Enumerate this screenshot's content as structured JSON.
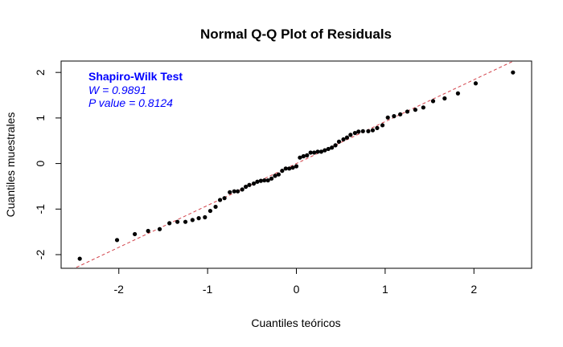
{
  "chart_data": {
    "type": "scatter",
    "title": "Normal Q-Q Plot of Residuals",
    "xlabel": "Cuantiles teóricos",
    "ylabel": "Cuantiles muestrales",
    "xlim": [
      -2.65,
      2.65
    ],
    "ylim": [
      -2.3,
      2.25
    ],
    "xticks": [
      -2,
      -1,
      0,
      1,
      2
    ],
    "yticks": [
      -2,
      -1,
      0,
      1,
      2
    ],
    "xtick_labels": [
      "-2",
      "-1",
      "0",
      "1",
      "2"
    ],
    "ytick_labels": [
      "-2",
      "-1",
      "0",
      "1",
      "2"
    ],
    "grid": false,
    "reference_line": {
      "intercept": 0,
      "slope": 0.92,
      "style": "dashed",
      "color": "#d2424a"
    },
    "point_color": "#000000",
    "annotation": {
      "title": "Shapiro-Wilk Test",
      "lines": [
        "W = 0.9891",
        "P value = 0.8124"
      ],
      "color": "#0000ff",
      "position": "top-left"
    },
    "points": [
      [
        -2.44,
        -2.09
      ],
      [
        -2.02,
        -1.68
      ],
      [
        -1.82,
        -1.55
      ],
      [
        -1.67,
        -1.48
      ],
      [
        -1.54,
        -1.44
      ],
      [
        -1.43,
        -1.31
      ],
      [
        -1.34,
        -1.28
      ],
      [
        -1.25,
        -1.28
      ],
      [
        -1.17,
        -1.24
      ],
      [
        -1.1,
        -1.2
      ],
      [
        -1.03,
        -1.18
      ],
      [
        -0.97,
        -1.04
      ],
      [
        -0.91,
        -0.95
      ],
      [
        -0.86,
        -0.8
      ],
      [
        -0.81,
        -0.76
      ],
      [
        -0.75,
        -0.63
      ],
      [
        -0.7,
        -0.61
      ],
      [
        -0.66,
        -0.61
      ],
      [
        -0.61,
        -0.57
      ],
      [
        -0.57,
        -0.51
      ],
      [
        -0.53,
        -0.47
      ],
      [
        -0.48,
        -0.44
      ],
      [
        -0.44,
        -0.4
      ],
      [
        -0.4,
        -0.38
      ],
      [
        -0.36,
        -0.37
      ],
      [
        -0.32,
        -0.37
      ],
      [
        -0.28,
        -0.33
      ],
      [
        -0.24,
        -0.27
      ],
      [
        -0.2,
        -0.24
      ],
      [
        -0.16,
        -0.16
      ],
      [
        -0.12,
        -0.11
      ],
      [
        -0.08,
        -0.11
      ],
      [
        -0.04,
        -0.09
      ],
      [
        0.0,
        -0.06
      ],
      [
        0.04,
        0.13
      ],
      [
        0.08,
        0.16
      ],
      [
        0.12,
        0.18
      ],
      [
        0.16,
        0.24
      ],
      [
        0.2,
        0.24
      ],
      [
        0.24,
        0.26
      ],
      [
        0.28,
        0.26
      ],
      [
        0.32,
        0.29
      ],
      [
        0.36,
        0.32
      ],
      [
        0.4,
        0.35
      ],
      [
        0.44,
        0.4
      ],
      [
        0.48,
        0.48
      ],
      [
        0.53,
        0.53
      ],
      [
        0.57,
        0.57
      ],
      [
        0.61,
        0.63
      ],
      [
        0.66,
        0.67
      ],
      [
        0.7,
        0.7
      ],
      [
        0.75,
        0.71
      ],
      [
        0.81,
        0.71
      ],
      [
        0.86,
        0.73
      ],
      [
        0.91,
        0.78
      ],
      [
        0.97,
        0.84
      ],
      [
        1.03,
        1.01
      ],
      [
        1.1,
        1.04
      ],
      [
        1.17,
        1.08
      ],
      [
        1.25,
        1.14
      ],
      [
        1.34,
        1.18
      ],
      [
        1.43,
        1.23
      ],
      [
        1.54,
        1.37
      ],
      [
        1.67,
        1.43
      ],
      [
        1.82,
        1.54
      ],
      [
        2.02,
        1.76
      ],
      [
        2.44,
        2.0
      ]
    ]
  }
}
